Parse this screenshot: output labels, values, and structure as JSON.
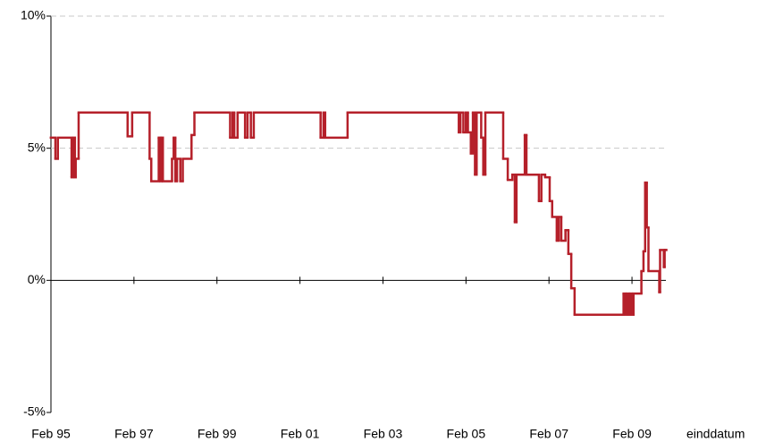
{
  "chart_data": {
    "type": "line",
    "step": "after",
    "color": "#b5202a",
    "x_label": "einddatum",
    "x": [
      1995.08,
      1995.19,
      1995.25,
      1995.58,
      1995.62,
      1995.66,
      1995.68,
      1995.75,
      1996.93,
      1997.04,
      1997.46,
      1997.5,
      1997.68,
      1997.72,
      1997.75,
      1997.78,
      1998.0,
      1998.04,
      1998.08,
      1998.12,
      1998.2,
      1998.26,
      1998.47,
      1998.54,
      1999.4,
      1999.46,
      1999.5,
      1999.58,
      1999.76,
      1999.82,
      1999.9,
      1999.97,
      2001.58,
      2001.65,
      2001.69,
      2002.23,
      2004.91,
      2004.95,
      2005.02,
      2005.08,
      2005.13,
      2005.2,
      2005.25,
      2005.3,
      2005.34,
      2005.45,
      2005.5,
      2005.55,
      2005.98,
      2006.09,
      2006.2,
      2006.26,
      2006.3,
      2006.5,
      2006.54,
      2006.84,
      2006.9,
      2006.99,
      2007.1,
      2007.16,
      2007.27,
      2007.32,
      2007.38,
      2007.48,
      2007.55,
      2007.62,
      2007.7,
      2008.88,
      2008.92,
      2008.96,
      2009.0,
      2009.04,
      2009.08,
      2009.12,
      2009.31,
      2009.36,
      2009.4,
      2009.44,
      2009.48,
      2009.74,
      2009.76,
      2009.85,
      2009.87,
      2009.89
    ],
    "values": [
      5.4,
      4.6,
      5.4,
      3.9,
      5.4,
      3.9,
      4.6,
      6.35,
      5.45,
      6.35,
      4.6,
      3.75,
      5.4,
      3.75,
      5.4,
      3.75,
      4.6,
      5.4,
      3.75,
      4.6,
      3.75,
      4.6,
      5.5,
      6.35,
      5.4,
      6.35,
      5.4,
      6.35,
      5.4,
      6.35,
      5.4,
      6.35,
      5.4,
      6.35,
      5.4,
      6.35,
      5.6,
      6.35,
      5.6,
      6.35,
      5.6,
      4.8,
      6.35,
      4.0,
      6.35,
      5.4,
      4.0,
      6.35,
      4.6,
      3.8,
      4.0,
      2.2,
      4.0,
      5.5,
      4.0,
      3.0,
      4.0,
      3.9,
      3.0,
      2.4,
      1.5,
      2.4,
      1.5,
      1.9,
      1.0,
      -0.3,
      -1.3,
      -0.5,
      -1.3,
      -0.5,
      -1.3,
      -0.5,
      -1.3,
      -0.5,
      0.35,
      1.1,
      3.7,
      2.0,
      0.35,
      -0.45,
      1.15,
      0.5,
      1.15,
      1.15
    ],
    "xlim": [
      1995.083,
      2009.9
    ],
    "xticks": [
      {
        "value": 1995.083,
        "label": "Feb 95"
      },
      {
        "value": 1997.083,
        "label": "Feb 97"
      },
      {
        "value": 1999.083,
        "label": "Feb 99"
      },
      {
        "value": 2001.083,
        "label": "Feb 01"
      },
      {
        "value": 2003.083,
        "label": "Feb 03"
      },
      {
        "value": 2005.083,
        "label": "Feb 05"
      },
      {
        "value": 2007.083,
        "label": "Feb 07"
      },
      {
        "value": 2009.083,
        "label": "Feb 09"
      }
    ],
    "ylim": [
      -5,
      10
    ],
    "yticks": [
      {
        "value": -5,
        "label": "-5%"
      },
      {
        "value": 0,
        "label": "0%"
      },
      {
        "value": 5,
        "label": "5%"
      },
      {
        "value": 10,
        "label": "10%"
      }
    ],
    "grid": true
  }
}
